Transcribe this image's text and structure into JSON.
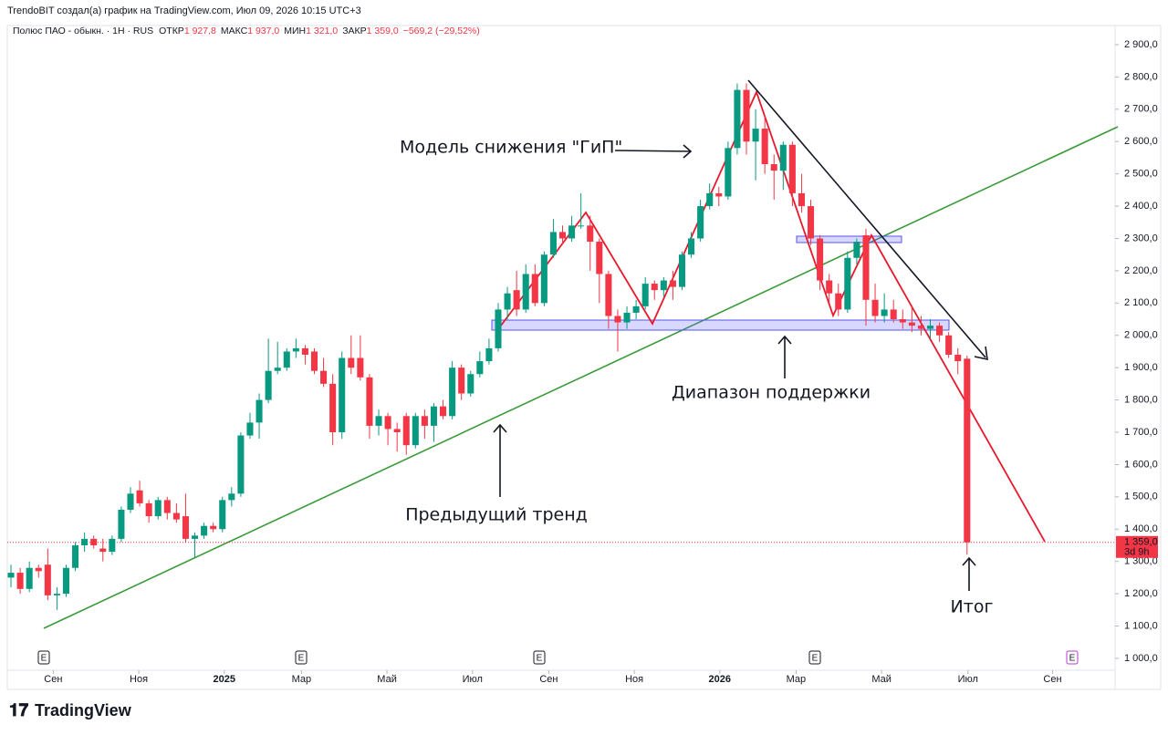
{
  "header": {
    "credit": "TrendoBIT создал(а) график на TradingView.com, Июл 09, 2026 10:15 UTC+3",
    "symbol": "Полюс ПАО - обыкн. · 1H · RUS",
    "ohlc": [
      {
        "label": "ОТКР",
        "value": "1 927,8"
      },
      {
        "label": "МАКС",
        "value": "1 937,0"
      },
      {
        "label": "МИН",
        "value": "1 321,0"
      },
      {
        "label": "ЗАКР",
        "value": "1 359,0"
      }
    ],
    "change": "−569,2 (−29,52%)"
  },
  "chart_data": {
    "type": "candlestick",
    "up_color": "#089981",
    "down_color": "#f23645",
    "grid": false,
    "ylim": [
      949,
      2931
    ],
    "xlim": [
      -0.4,
      120.1
    ],
    "yticks": [
      {
        "value": 1000,
        "label": "1 000,0"
      },
      {
        "value": 1100,
        "label": "1 100,0"
      },
      {
        "value": 1200,
        "label": "1 200,0"
      },
      {
        "value": 1300,
        "label": "1 300,0"
      },
      {
        "value": 1400,
        "label": "1 400,0"
      },
      {
        "value": 1500,
        "label": "1 500,0"
      },
      {
        "value": 1600,
        "label": "1 600,0"
      },
      {
        "value": 1700,
        "label": "1 700,0"
      },
      {
        "value": 1800,
        "label": "1 800,0"
      },
      {
        "value": 1900,
        "label": "1 900,0"
      },
      {
        "value": 2000,
        "label": "2 000,0"
      },
      {
        "value": 2100,
        "label": "2 100,0"
      },
      {
        "value": 2200,
        "label": "2 200,0"
      },
      {
        "value": 2300,
        "label": "2 300,0"
      },
      {
        "value": 2400,
        "label": "2 400,0"
      },
      {
        "value": 2500,
        "label": "2 500,0"
      },
      {
        "value": 2600,
        "label": "2 600,0"
      },
      {
        "value": 2700,
        "label": "2 700,0"
      },
      {
        "value": 2800,
        "label": "2 800,0"
      },
      {
        "value": 2900,
        "label": "2 900,0"
      }
    ],
    "xticks": [
      {
        "value": 4.6,
        "label": "Сен"
      },
      {
        "value": 13.9,
        "label": "Ноя"
      },
      {
        "value": 23.2,
        "label": "2025"
      },
      {
        "value": 31.6,
        "label": "Мар"
      },
      {
        "value": 40.9,
        "label": "Май"
      },
      {
        "value": 50.2,
        "label": "Июл"
      },
      {
        "value": 58.5,
        "label": "Сен"
      },
      {
        "value": 67.8,
        "label": "Ноя"
      },
      {
        "value": 77.1,
        "label": "2026"
      },
      {
        "value": 85.4,
        "label": "Мар"
      },
      {
        "value": 94.7,
        "label": "Май"
      },
      {
        "value": 104.1,
        "label": "Июл"
      },
      {
        "value": 113.3,
        "label": "Сен"
      }
    ],
    "events": [
      "E",
      "E",
      "E",
      "E",
      "E"
    ],
    "last_price": 1359,
    "last_price_label": "1 359,0",
    "countdown": "3d 9h",
    "annotations": {
      "pattern": "Модель снижения \"ГиП\"",
      "support": "Диапазон поддержки",
      "trend": "Предыдущий тренд",
      "result": "Итог"
    },
    "ohlc": [
      [
        1250,
        1290,
        1220,
        1265
      ],
      [
        1265,
        1280,
        1200,
        1215
      ],
      [
        1215,
        1300,
        1205,
        1280
      ],
      [
        1280,
        1290,
        1250,
        1270
      ],
      [
        1290,
        1340,
        1180,
        1195
      ],
      [
        1195,
        1220,
        1150,
        1200
      ],
      [
        1200,
        1290,
        1190,
        1280
      ],
      [
        1280,
        1360,
        1270,
        1350
      ],
      [
        1350,
        1390,
        1330,
        1370
      ],
      [
        1370,
        1380,
        1340,
        1350
      ],
      [
        1340,
        1370,
        1300,
        1330
      ],
      [
        1330,
        1380,
        1320,
        1370
      ],
      [
        1370,
        1470,
        1360,
        1460
      ],
      [
        1460,
        1530,
        1450,
        1510
      ],
      [
        1520,
        1550,
        1470,
        1480
      ],
      [
        1480,
        1490,
        1420,
        1440
      ],
      [
        1440,
        1500,
        1430,
        1490
      ],
      [
        1490,
        1500,
        1430,
        1450
      ],
      [
        1450,
        1480,
        1420,
        1430
      ],
      [
        1440,
        1510,
        1360,
        1370
      ],
      [
        1370,
        1390,
        1310,
        1380
      ],
      [
        1380,
        1420,
        1370,
        1410
      ],
      [
        1410,
        1420,
        1390,
        1400
      ],
      [
        1400,
        1500,
        1390,
        1490
      ],
      [
        1490,
        1530,
        1470,
        1510
      ],
      [
        1510,
        1700,
        1500,
        1690
      ],
      [
        1690,
        1760,
        1680,
        1730
      ],
      [
        1730,
        1820,
        1680,
        1800
      ],
      [
        1800,
        1990,
        1790,
        1890
      ],
      [
        1890,
        1980,
        1880,
        1900
      ],
      [
        1900,
        1960,
        1890,
        1950
      ],
      [
        1950,
        1990,
        1930,
        1960
      ],
      [
        1960,
        1970,
        1910,
        1940
      ],
      [
        1950,
        1960,
        1880,
        1890
      ],
      [
        1890,
        1930,
        1840,
        1850
      ],
      [
        1850,
        1880,
        1660,
        1700
      ],
      [
        1700,
        1950,
        1680,
        1930
      ],
      [
        1930,
        2000,
        1880,
        1900
      ],
      [
        1930,
        2000,
        1860,
        1870
      ],
      [
        1870,
        1880,
        1680,
        1720
      ],
      [
        1720,
        1770,
        1690,
        1750
      ],
      [
        1750,
        1760,
        1660,
        1710
      ],
      [
        1710,
        1730,
        1640,
        1700
      ],
      [
        1750,
        1760,
        1630,
        1660
      ],
      [
        1660,
        1760,
        1650,
        1750
      ],
      [
        1750,
        1770,
        1680,
        1720
      ],
      [
        1720,
        1790,
        1670,
        1780
      ],
      [
        1780,
        1800,
        1740,
        1750
      ],
      [
        1750,
        1920,
        1740,
        1900
      ],
      [
        1900,
        1910,
        1800,
        1820
      ],
      [
        1820,
        1890,
        1810,
        1880
      ],
      [
        1880,
        1950,
        1870,
        1920
      ],
      [
        1920,
        1990,
        1910,
        1960
      ],
      [
        1960,
        2100,
        1950,
        2080
      ],
      [
        2080,
        2150,
        2050,
        2130
      ],
      [
        2140,
        2200,
        2060,
        2080
      ],
      [
        2080,
        2220,
        2070,
        2190
      ],
      [
        2190,
        2220,
        2090,
        2100
      ],
      [
        2100,
        2260,
        2090,
        2250
      ],
      [
        2250,
        2360,
        2240,
        2320
      ],
      [
        2320,
        2340,
        2280,
        2300
      ],
      [
        2300,
        2370,
        2290,
        2340
      ],
      [
        2340,
        2440,
        2330,
        2340
      ],
      [
        2340,
        2370,
        2200,
        2290
      ],
      [
        2290,
        2300,
        2100,
        2190
      ],
      [
        2190,
        2200,
        2020,
        2060
      ],
      [
        2060,
        2080,
        1950,
        2040
      ],
      [
        2040,
        2090,
        2020,
        2070
      ],
      [
        2070,
        2110,
        2050,
        2090
      ],
      [
        2090,
        2180,
        2080,
        2160
      ],
      [
        2160,
        2170,
        2110,
        2140
      ],
      [
        2140,
        2180,
        2120,
        2170
      ],
      [
        2170,
        2200,
        2110,
        2150
      ],
      [
        2150,
        2260,
        2140,
        2250
      ],
      [
        2250,
        2320,
        2240,
        2300
      ],
      [
        2300,
        2420,
        2290,
        2400
      ],
      [
        2400,
        2470,
        2390,
        2440
      ],
      [
        2440,
        2460,
        2400,
        2430
      ],
      [
        2430,
        2600,
        2420,
        2580
      ],
      [
        2580,
        2780,
        2560,
        2760
      ],
      [
        2760,
        2780,
        2560,
        2600
      ],
      [
        2600,
        2700,
        2480,
        2640
      ],
      [
        2640,
        2680,
        2500,
        2530
      ],
      [
        2530,
        2560,
        2420,
        2510
      ],
      [
        2510,
        2600,
        2450,
        2590
      ],
      [
        2590,
        2600,
        2400,
        2440
      ],
      [
        2440,
        2500,
        2380,
        2400
      ],
      [
        2400,
        2420,
        2280,
        2300
      ],
      [
        2300,
        2310,
        2140,
        2170
      ],
      [
        2170,
        2190,
        2100,
        2130
      ],
      [
        2130,
        2160,
        2060,
        2080
      ],
      [
        2080,
        2260,
        2070,
        2240
      ],
      [
        2240,
        2300,
        2220,
        2290
      ],
      [
        2310,
        2330,
        2030,
        2110
      ],
      [
        2110,
        2160,
        2040,
        2060
      ],
      [
        2060,
        2130,
        2040,
        2080
      ],
      [
        2080,
        2110,
        2040,
        2050
      ],
      [
        2050,
        2080,
        2020,
        2040
      ],
      [
        2040,
        2090,
        2010,
        2030
      ],
      [
        2030,
        2060,
        2000,
        2020
      ],
      [
        2020,
        2050,
        1990,
        2030
      ],
      [
        2030,
        2040,
        1980,
        2000
      ],
      [
        2000,
        2010,
        1930,
        1940
      ],
      [
        1940,
        1960,
        1880,
        1920
      ],
      [
        1927.8,
        1937,
        1321,
        1359
      ]
    ]
  }
}
